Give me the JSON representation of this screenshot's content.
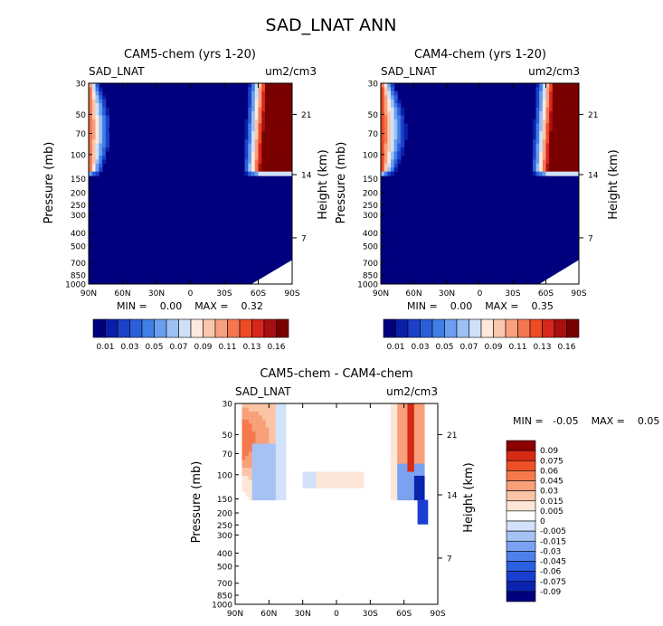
{
  "figure_title": "SAD_LNAT ANN",
  "colors": {
    "seq": [
      "#00007f",
      "#0a1fa8",
      "#1d40c9",
      "#2a5fd8",
      "#3f7fe6",
      "#6a9eee",
      "#9dc0f4",
      "#cfe1f9",
      "#fde8dc",
      "#fbc7ac",
      "#f8a07f",
      "#f4764f",
      "#ed4b24",
      "#d7261d",
      "#a80f12",
      "#7a0000"
    ],
    "div": [
      "#00007f",
      "#0a24b0",
      "#1a3fd0",
      "#2a5fe0",
      "#4f80ea",
      "#7aa2f0",
      "#a6c2f4",
      "#d2e2fa",
      "#ffffff",
      "#fde6d8",
      "#fbc4a6",
      "#f8a07a",
      "#f47a4e",
      "#ee5028",
      "#d62a15",
      "#8c0000"
    ]
  },
  "chart_data": [
    {
      "type": "heatmap",
      "name": "panel-cam5",
      "title": "CAM5-chem (yrs 1-20)",
      "left_label": "SAD_LNAT",
      "right_label": "um2/cm3",
      "ylabel": "Pressure (mb)",
      "ylabel_right": "Height (km)",
      "x_ticks": [
        "90N",
        "60N",
        "30N",
        "0",
        "30S",
        "60S",
        "90S"
      ],
      "y_ticks": [
        "30",
        "50",
        "70",
        "100",
        "150",
        "200",
        "250",
        "300",
        "400",
        "500",
        "700",
        "850",
        "1000"
      ],
      "y_ticks_right": [
        "21",
        "14",
        "7"
      ],
      "min_max_text": "MIN =    0.00    MAX =    0.32",
      "min": 0.0,
      "max": 0.32,
      "colorbar_labels": [
        "0.01",
        "0.03",
        "0.05",
        "0.07",
        "0.09",
        "0.11",
        "0.13",
        "0.16"
      ]
    },
    {
      "type": "heatmap",
      "name": "panel-cam4",
      "title": "CAM4-chem (yrs 1-20)",
      "left_label": "SAD_LNAT",
      "right_label": "um2/cm3",
      "ylabel": "Pressure (mb)",
      "ylabel_right": "Height (km)",
      "x_ticks": [
        "90N",
        "60N",
        "30N",
        "0",
        "30S",
        "60S",
        "90S"
      ],
      "y_ticks": [
        "30",
        "50",
        "70",
        "100",
        "150",
        "200",
        "250",
        "300",
        "400",
        "500",
        "700",
        "850",
        "1000"
      ],
      "y_ticks_right": [
        "21",
        "14",
        "7"
      ],
      "min_max_text": "MIN =    0.00    MAX =    0.35",
      "min": 0.0,
      "max": 0.35,
      "colorbar_labels": [
        "0.01",
        "0.03",
        "0.05",
        "0.07",
        "0.09",
        "0.11",
        "0.13",
        "0.16"
      ]
    },
    {
      "type": "heatmap",
      "name": "panel-diff",
      "title": "CAM5-chem - CAM4-chem",
      "left_label": "SAD_LNAT",
      "right_label": "um2/cm3",
      "ylabel": "Pressure (mb)",
      "ylabel_right": "Height (km)",
      "x_ticks": [
        "90N",
        "60N",
        "30N",
        "0",
        "30S",
        "60S",
        "90S"
      ],
      "y_ticks": [
        "30",
        "50",
        "70",
        "100",
        "150",
        "200",
        "250",
        "300",
        "400",
        "500",
        "700",
        "850",
        "1000"
      ],
      "y_ticks_right": [
        "21",
        "14",
        "7"
      ],
      "min_max_text": "MIN =   -0.05    MAX =    0.05",
      "min": -0.05,
      "max": 0.05,
      "colorbar_labels": [
        "0.09",
        "0.075",
        "0.06",
        "0.045",
        "0.03",
        "0.015",
        "0.005",
        "0",
        "-0.005",
        "-0.015",
        "-0.03",
        "-0.045",
        "-0.06",
        "-0.075",
        "-0.09"
      ]
    }
  ]
}
